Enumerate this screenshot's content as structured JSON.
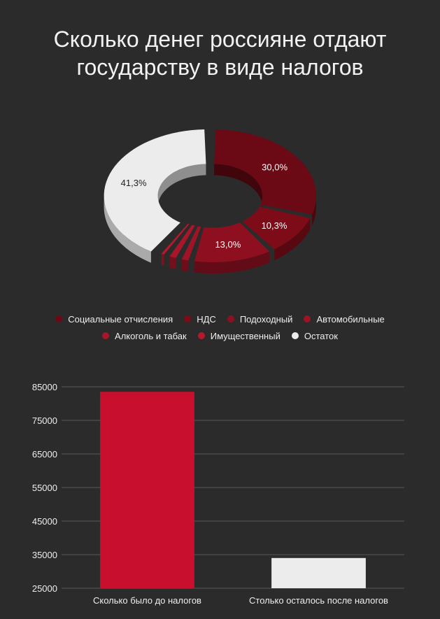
{
  "title": {
    "line1": "Сколько денег россияне отдают",
    "line2": "государству в виде налогов"
  },
  "colors": {
    "background": "#2b2b2b",
    "social": "#6b0a14",
    "nds": "#7d0c18",
    "income": "#8e1020",
    "auto": "#9e1426",
    "alcohol": "#a8162a",
    "property": "#b8182e",
    "remainder": "#ececec",
    "bar_before": "#c8102e",
    "bar_after": "#ececec"
  },
  "chart_data": [
    {
      "type": "pie",
      "variant": "donut-3d",
      "slices": [
        {
          "name": "Социальные отчисления",
          "value": 30.0,
          "label": "30,0%",
          "color": "#6b0a14"
        },
        {
          "name": "НДС",
          "value": 10.3,
          "label": "10,3%",
          "color": "#7d0c18"
        },
        {
          "name": "Подоходный",
          "value": 13.0,
          "label": "13,0%",
          "color": "#8e1020"
        },
        {
          "name": "Автомобильные",
          "value": 2.0,
          "label": "",
          "color": "#9e1426"
        },
        {
          "name": "Алкоголь и табак",
          "value": 2.0,
          "label": "",
          "color": "#a8162a"
        },
        {
          "name": "Имущественный",
          "value": 1.4,
          "label": "",
          "color": "#b8182e"
        },
        {
          "name": "Остаток",
          "value": 41.3,
          "label": "41,3%",
          "color": "#ececec"
        }
      ],
      "legend_position": "bottom"
    },
    {
      "type": "bar",
      "categories": [
        "Сколько было до налогов",
        "Столько осталось после налогов"
      ],
      "values": [
        83500,
        34000
      ],
      "colors": [
        "#c8102e",
        "#ececec"
      ],
      "ylim": [
        25000,
        85000
      ],
      "yticks": [
        "85000",
        "75000",
        "65000",
        "55000",
        "45000",
        "35000",
        "25000"
      ],
      "grid": true
    }
  ]
}
